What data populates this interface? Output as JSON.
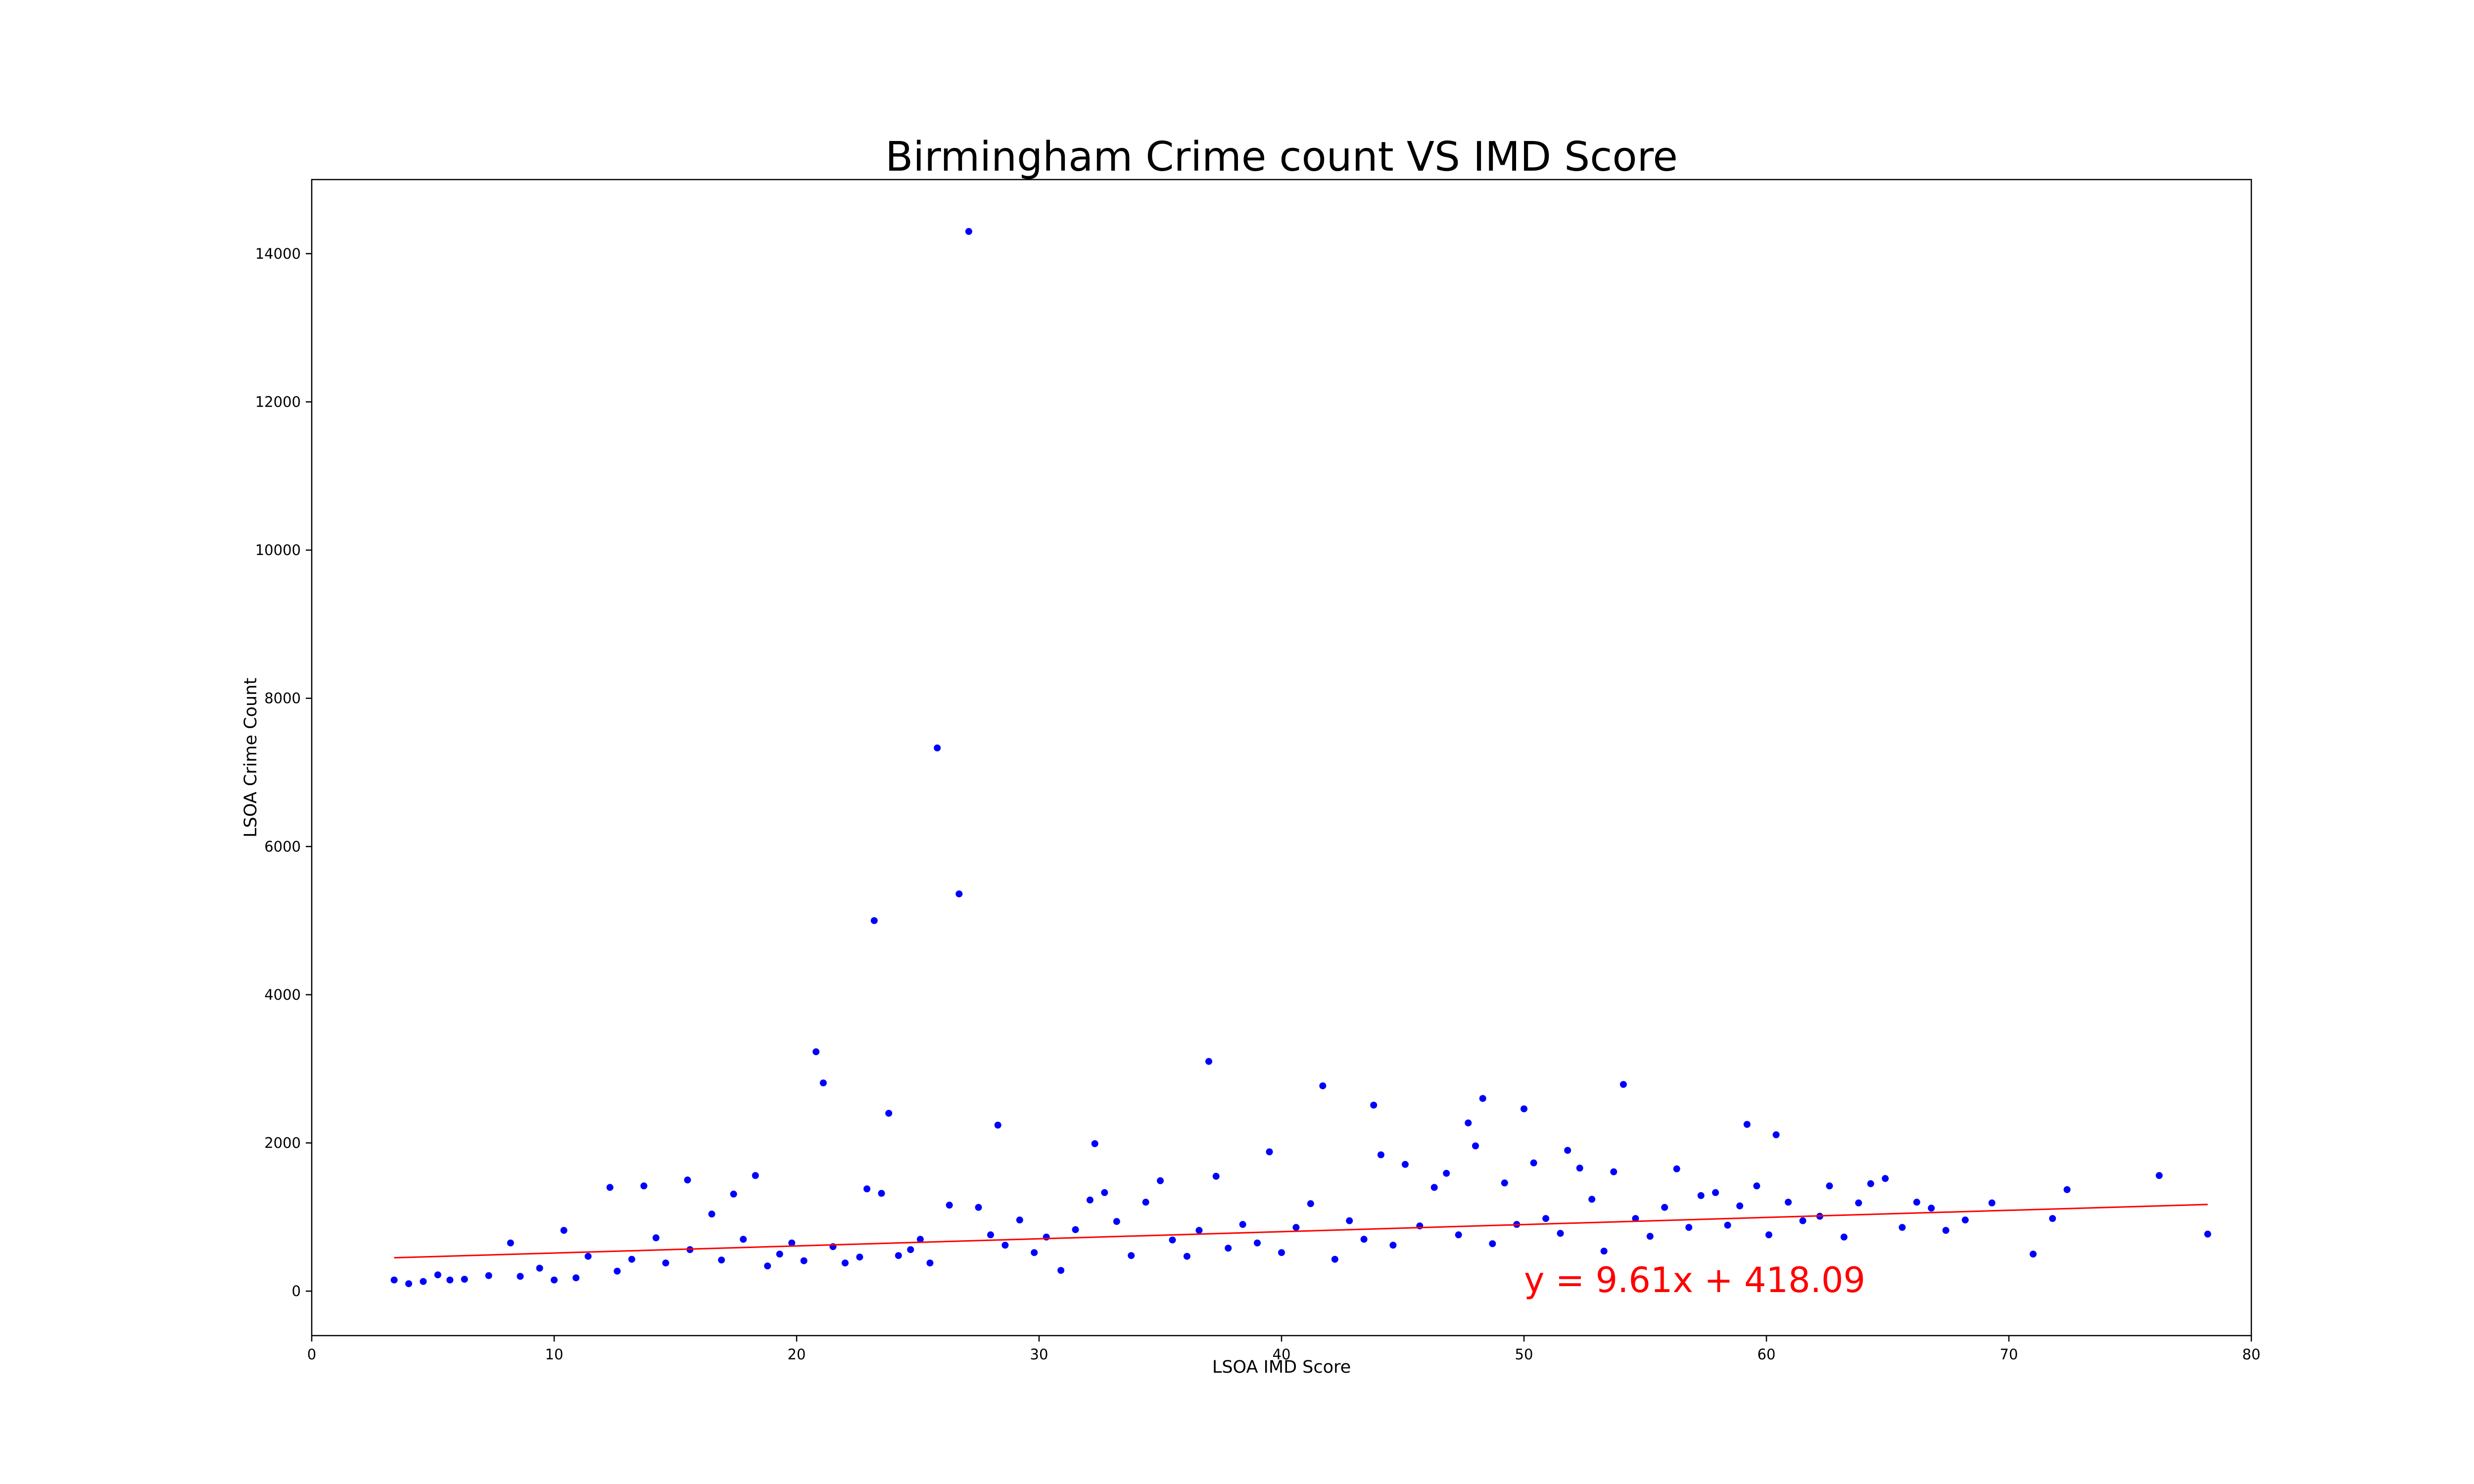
{
  "chart_data": {
    "type": "scatter",
    "title": "Birmingham Crime count VS IMD Score",
    "xlabel": "LSOA IMD Score",
    "ylabel": "LSOA Crime Count",
    "xlim": [
      0,
      80
    ],
    "ylim": [
      -600,
      15000
    ],
    "xticks": [
      0,
      10,
      20,
      30,
      40,
      50,
      60,
      70,
      80
    ],
    "yticks": [
      0,
      2000,
      4000,
      6000,
      8000,
      10000,
      12000,
      14000
    ],
    "grid": false,
    "marker_color": "#0000ff",
    "fit_line_color": "#ff0000",
    "regression": {
      "slope": 9.61,
      "intercept": 418.09,
      "x_range": [
        3.4,
        78.2
      ],
      "equation_label": "y = 9.61x + 418.09"
    },
    "points": [
      [
        3.4,
        150
      ],
      [
        4.0,
        100
      ],
      [
        4.6,
        130
      ],
      [
        5.2,
        220
      ],
      [
        5.7,
        150
      ],
      [
        6.3,
        160
      ],
      [
        7.3,
        210
      ],
      [
        8.2,
        650
      ],
      [
        8.6,
        200
      ],
      [
        9.4,
        310
      ],
      [
        10.0,
        150
      ],
      [
        10.4,
        820
      ],
      [
        10.9,
        180
      ],
      [
        11.4,
        470
      ],
      [
        12.3,
        1400
      ],
      [
        12.6,
        270
      ],
      [
        13.2,
        430
      ],
      [
        13.7,
        1420
      ],
      [
        14.2,
        720
      ],
      [
        14.6,
        380
      ],
      [
        15.5,
        1500
      ],
      [
        15.6,
        560
      ],
      [
        16.5,
        1040
      ],
      [
        16.9,
        420
      ],
      [
        17.4,
        1310
      ],
      [
        17.8,
        700
      ],
      [
        18.3,
        1560
      ],
      [
        18.8,
        340
      ],
      [
        19.3,
        500
      ],
      [
        19.8,
        650
      ],
      [
        20.3,
        410
      ],
      [
        20.8,
        3230
      ],
      [
        21.1,
        2810
      ],
      [
        21.5,
        600
      ],
      [
        22.0,
        380
      ],
      [
        22.6,
        460
      ],
      [
        22.9,
        1380
      ],
      [
        23.2,
        5000
      ],
      [
        23.5,
        1320
      ],
      [
        23.8,
        2400
      ],
      [
        24.2,
        480
      ],
      [
        24.7,
        560
      ],
      [
        25.1,
        700
      ],
      [
        25.5,
        380
      ],
      [
        25.8,
        7330
      ],
      [
        26.3,
        1160
      ],
      [
        26.7,
        5360
      ],
      [
        27.1,
        14300
      ],
      [
        27.5,
        1130
      ],
      [
        28.0,
        760
      ],
      [
        28.3,
        2240
      ],
      [
        28.6,
        620
      ],
      [
        29.2,
        960
      ],
      [
        29.8,
        520
      ],
      [
        30.3,
        730
      ],
      [
        30.9,
        280
      ],
      [
        31.5,
        830
      ],
      [
        32.1,
        1230
      ],
      [
        32.3,
        1990
      ],
      [
        32.7,
        1330
      ],
      [
        33.2,
        940
      ],
      [
        33.8,
        480
      ],
      [
        34.4,
        1200
      ],
      [
        35.0,
        1490
      ],
      [
        35.5,
        690
      ],
      [
        36.1,
        470
      ],
      [
        36.6,
        820
      ],
      [
        37.0,
        3100
      ],
      [
        37.3,
        1550
      ],
      [
        37.8,
        580
      ],
      [
        38.4,
        900
      ],
      [
        39.0,
        650
      ],
      [
        39.5,
        1880
      ],
      [
        40.0,
        520
      ],
      [
        40.6,
        860
      ],
      [
        41.2,
        1180
      ],
      [
        41.7,
        2770
      ],
      [
        42.2,
        430
      ],
      [
        42.8,
        950
      ],
      [
        43.4,
        700
      ],
      [
        43.8,
        2510
      ],
      [
        44.1,
        1840
      ],
      [
        44.6,
        620
      ],
      [
        45.1,
        1710
      ],
      [
        45.7,
        880
      ],
      [
        46.3,
        1400
      ],
      [
        46.8,
        1590
      ],
      [
        47.3,
        760
      ],
      [
        47.7,
        2270
      ],
      [
        48.0,
        1960
      ],
      [
        48.3,
        2600
      ],
      [
        48.7,
        640
      ],
      [
        49.2,
        1460
      ],
      [
        49.7,
        900
      ],
      [
        50.0,
        2460
      ],
      [
        50.4,
        1730
      ],
      [
        50.9,
        980
      ],
      [
        51.5,
        780
      ],
      [
        51.8,
        1900
      ],
      [
        52.3,
        1660
      ],
      [
        52.8,
        1240
      ],
      [
        53.3,
        540
      ],
      [
        53.7,
        1610
      ],
      [
        54.1,
        2790
      ],
      [
        54.6,
        980
      ],
      [
        55.2,
        740
      ],
      [
        55.8,
        1130
      ],
      [
        56.3,
        1650
      ],
      [
        56.8,
        860
      ],
      [
        57.3,
        1290
      ],
      [
        57.9,
        1330
      ],
      [
        58.4,
        890
      ],
      [
        58.9,
        1150
      ],
      [
        59.2,
        2250
      ],
      [
        59.6,
        1420
      ],
      [
        60.1,
        760
      ],
      [
        60.4,
        2110
      ],
      [
        60.9,
        1200
      ],
      [
        61.5,
        950
      ],
      [
        62.2,
        1010
      ],
      [
        62.6,
        1420
      ],
      [
        63.2,
        730
      ],
      [
        63.8,
        1190
      ],
      [
        64.3,
        1450
      ],
      [
        64.9,
        1520
      ],
      [
        65.6,
        860
      ],
      [
        66.2,
        1200
      ],
      [
        66.8,
        1120
      ],
      [
        67.4,
        820
      ],
      [
        68.2,
        960
      ],
      [
        69.3,
        1190
      ],
      [
        71.0,
        500
      ],
      [
        71.8,
        980
      ],
      [
        72.4,
        1370
      ],
      [
        76.2,
        1560
      ],
      [
        78.2,
        770
      ]
    ]
  }
}
